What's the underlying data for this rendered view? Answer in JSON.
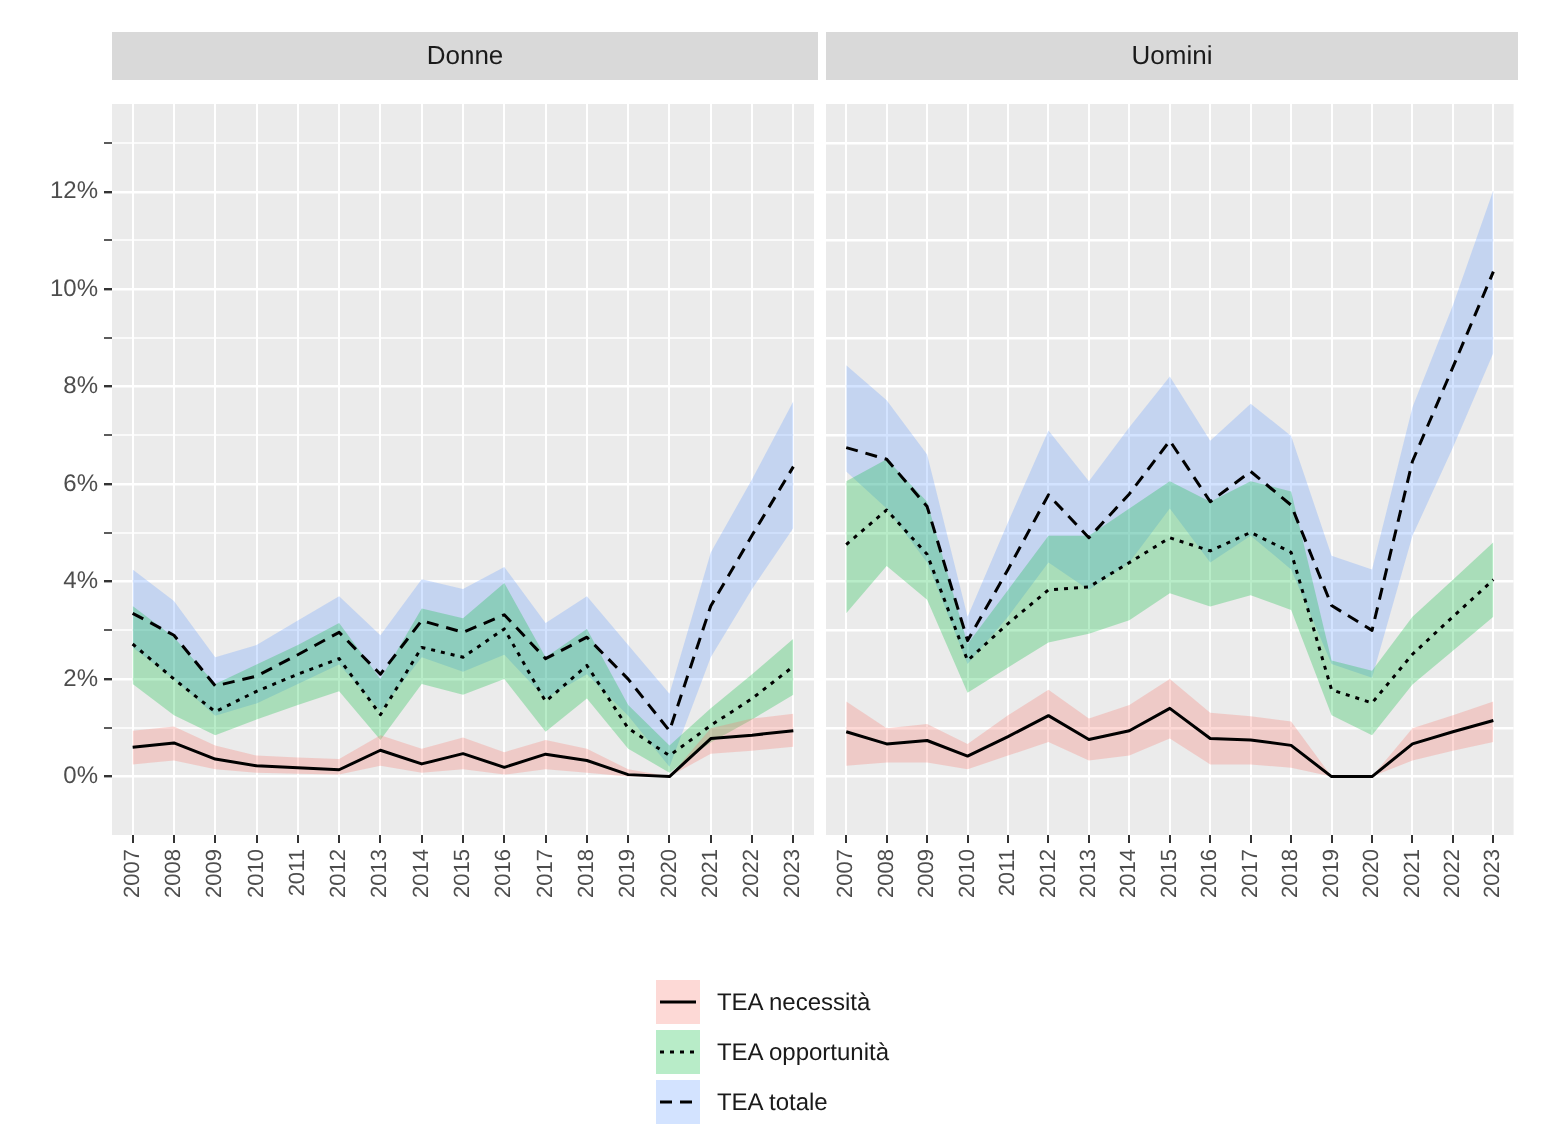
{
  "chart_data": [
    {
      "type": "line",
      "title": "Donne",
      "categories": [
        "2007",
        "2008",
        "2009",
        "2010",
        "2011",
        "2012",
        "2013",
        "2014",
        "2015",
        "2016",
        "2017",
        "2018",
        "2019",
        "2020",
        "2021",
        "2022",
        "2023"
      ],
      "ylim": [
        -1.2,
        13.8
      ],
      "yticks": [
        {
          "value": 0,
          "label": "0%"
        },
        {
          "value": 1,
          "label": null
        },
        {
          "value": 2,
          "label": "2%"
        },
        {
          "value": 3,
          "label": null
        },
        {
          "value": 4,
          "label": "4%"
        },
        {
          "value": 5,
          "label": null
        },
        {
          "value": 6,
          "label": "6%"
        },
        {
          "value": 7,
          "label": null
        },
        {
          "value": 8,
          "label": "8%"
        },
        {
          "value": 9,
          "label": null
        },
        {
          "value": 10,
          "label": "10%"
        },
        {
          "value": 11,
          "label": null
        },
        {
          "value": 12,
          "label": "12%"
        },
        {
          "value": 13,
          "label": null
        }
      ],
      "grid": true,
      "legend": "bottom",
      "series": [
        {
          "name": "TEA necessità",
          "color": "#000000",
          "line_style": "solid",
          "values": [
            0.6,
            0.69,
            0.36,
            0.22,
            0.18,
            0.14,
            0.54,
            0.26,
            0.47,
            0.19,
            0.46,
            0.33,
            0.04,
            0,
            0.78,
            0.85,
            0.94
          ],
          "lower": [
            0.25,
            0.33,
            0.15,
            0.08,
            0.06,
            0.04,
            0.22,
            0.08,
            0.15,
            0.04,
            0.15,
            0.08,
            0,
            0,
            0.47,
            0.53,
            0.61
          ],
          "upper": [
            0.94,
            1.03,
            0.64,
            0.43,
            0.39,
            0.36,
            0.85,
            0.57,
            0.8,
            0.5,
            0.75,
            0.57,
            0.15,
            0,
            0.99,
            1.19,
            1.29
          ]
        },
        {
          "name": "TEA opportunità",
          "color": "#000000",
          "line_style": "dotted",
          "values": [
            2.72,
            2.0,
            1.33,
            1.75,
            2.1,
            2.42,
            1.27,
            2.65,
            2.45,
            3.03,
            1.54,
            2.28,
            0.99,
            0.43,
            1.05,
            1.6,
            2.26
          ],
          "lower": [
            1.9,
            1.26,
            0.85,
            1.17,
            1.47,
            1.75,
            0.75,
            1.9,
            1.68,
            2.0,
            0.92,
            1.6,
            0.57,
            0.08,
            0.7,
            1.17,
            1.68
          ],
          "upper": [
            3.5,
            2.86,
            1.9,
            2.3,
            2.7,
            3.15,
            2.0,
            3.45,
            3.25,
            3.97,
            2.45,
            3.03,
            1.47,
            0.64,
            1.4,
            2.1,
            2.83
          ]
        },
        {
          "name": "TEA totale",
          "color": "#000000",
          "line_style": "dashed",
          "values": [
            3.35,
            2.9,
            1.86,
            2.06,
            2.5,
            2.96,
            2.1,
            3.2,
            2.96,
            3.32,
            2.42,
            2.86,
            2.0,
            0.94,
            3.5,
            4.95,
            6.36
          ],
          "lower": [
            2.65,
            2.0,
            1.25,
            1.5,
            1.9,
            2.3,
            1.35,
            2.45,
            2.15,
            2.5,
            1.6,
            2.1,
            1.25,
            0.2,
            2.45,
            3.85,
            5.1
          ],
          "upper": [
            4.25,
            3.6,
            2.45,
            2.7,
            3.2,
            3.7,
            2.9,
            4.05,
            3.85,
            4.3,
            3.15,
            3.7,
            2.7,
            1.7,
            4.6,
            6.1,
            7.7
          ]
        }
      ]
    },
    {
      "type": "line",
      "title": "Uomini",
      "categories": [
        "2007",
        "2008",
        "2009",
        "2010",
        "2011",
        "2012",
        "2013",
        "2014",
        "2015",
        "2016",
        "2017",
        "2018",
        "2019",
        "2020",
        "2021",
        "2022",
        "2023"
      ],
      "ylim": [
        -1.2,
        13.8
      ],
      "yticks": [
        {
          "value": 0,
          "label": null
        },
        {
          "value": 1,
          "label": null
        },
        {
          "value": 2,
          "label": null
        },
        {
          "value": 3,
          "label": null
        },
        {
          "value": 4,
          "label": null
        },
        {
          "value": 5,
          "label": null
        },
        {
          "value": 6,
          "label": null
        },
        {
          "value": 7,
          "label": null
        },
        {
          "value": 8,
          "label": null
        },
        {
          "value": 9,
          "label": null
        },
        {
          "value": 10,
          "label": null
        },
        {
          "value": 11,
          "label": null
        },
        {
          "value": 12,
          "label": null
        },
        {
          "value": 13,
          "label": null
        }
      ],
      "grid": true,
      "tick_labels": "x",
      "series": [
        {
          "color": "#000000",
          "line_style": "solid",
          "values": [
            0.92,
            0.67,
            0.74,
            0.42,
            0.82,
            1.25,
            0.76,
            0.94,
            1.4,
            0.78,
            0.75,
            0.64,
            0,
            0,
            0.67,
            0.92,
            1.15
          ],
          "lower": [
            0.22,
            0.29,
            0.29,
            0.15,
            0.43,
            0.71,
            0.33,
            0.43,
            0.78,
            0.25,
            0.25,
            0.18,
            0,
            0,
            0.33,
            0.53,
            0.71
          ],
          "upper": [
            1.54,
            0.99,
            1.08,
            0.67,
            1.26,
            1.78,
            1.19,
            1.47,
            2.0,
            1.31,
            1.24,
            1.13,
            0,
            0,
            0.99,
            1.26,
            1.54
          ]
        },
        {
          "color": "#000000",
          "line_style": "dotted",
          "values": [
            4.76,
            5.47,
            4.56,
            2.38,
            3.14,
            3.83,
            3.89,
            4.39,
            4.9,
            4.63,
            5.01,
            4.6,
            1.78,
            1.51,
            2.51,
            3.28,
            4.04
          ],
          "lower": [
            3.35,
            4.32,
            3.63,
            1.72,
            2.24,
            2.75,
            2.93,
            3.21,
            3.76,
            3.49,
            3.72,
            3.42,
            1.26,
            0.85,
            1.89,
            2.58,
            3.28
          ],
          "upper": [
            6.06,
            6.51,
            5.64,
            2.72,
            3.83,
            4.94,
            4.94,
            5.5,
            6.06,
            5.64,
            6.06,
            5.85,
            2.38,
            2.17,
            3.28,
            4.04,
            4.81
          ]
        },
        {
          "color": "#000000",
          "line_style": "dashed",
          "values": [
            6.75,
            6.51,
            5.54,
            2.79,
            4.25,
            5.78,
            4.9,
            5.8,
            6.89,
            5.64,
            6.26,
            5.57,
            3.51,
            3.0,
            6.47,
            8.4,
            10.36
          ],
          "lower": [
            6.26,
            5.5,
            4.39,
            2.31,
            3.28,
            4.39,
            3.83,
            4.39,
            5.5,
            4.39,
            4.94,
            4.25,
            2.31,
            2.03,
            4.94,
            6.75,
            8.69
          ],
          "upper": [
            8.44,
            7.72,
            6.61,
            3.28,
            5.22,
            7.1,
            6.06,
            7.17,
            8.21,
            6.89,
            7.65,
            6.99,
            4.53,
            4.25,
            7.58,
            9.67,
            12.03
          ]
        }
      ]
    }
  ]
}
